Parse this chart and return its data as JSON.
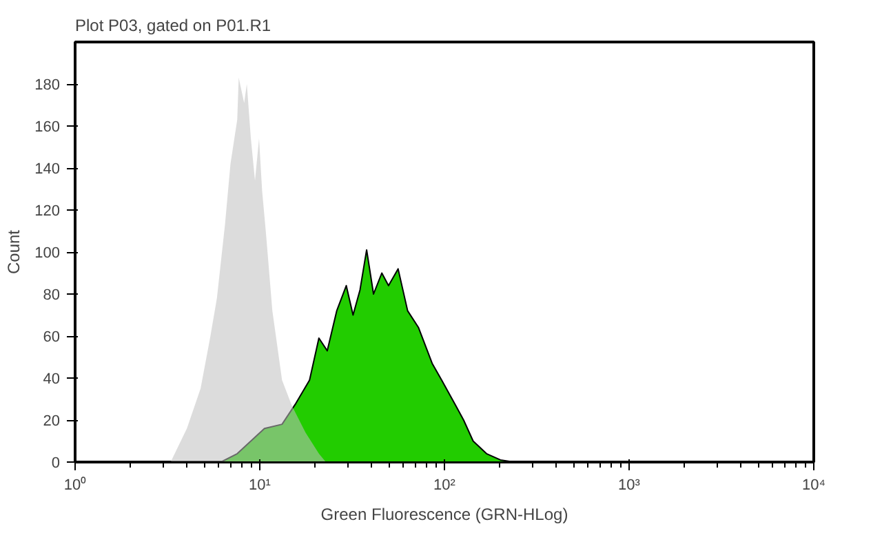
{
  "chart_data": {
    "type": "area",
    "title": "Plot P03, gated on P01.R1",
    "xlabel": "Green Fluorescence (GRN-HLog)",
    "ylabel": "Count",
    "log": "x",
    "grid": false,
    "xlim": [
      1,
      10000
    ],
    "xticks": [
      {
        "value": 1,
        "label": "10⁰"
      },
      {
        "value": 10,
        "label": "10¹"
      },
      {
        "value": 100,
        "label": "10²"
      },
      {
        "value": 1000,
        "label": "10³"
      },
      {
        "value": 10000,
        "label": "10⁴"
      }
    ],
    "ylim": [
      0,
      200
    ],
    "yticks": [
      0,
      20,
      40,
      60,
      80,
      100,
      120,
      140,
      160,
      180
    ],
    "series": [
      {
        "color": "#22cc00",
        "x": [
          6.16,
          7.55,
          10.6,
          13.2,
          15.7,
          18.6,
          20.9,
          23.2,
          26.1,
          29.4,
          32.0,
          34.9,
          37.9,
          41.3,
          45.8,
          49.8,
          56.1,
          63.2,
          72.4,
          85.8,
          96.6,
          115,
          127,
          143,
          169,
          201,
          238
        ],
        "values": [
          0,
          4,
          16,
          18,
          28,
          39,
          59,
          53,
          72,
          84,
          70,
          82,
          101,
          80,
          90,
          84,
          92,
          72,
          64,
          47,
          39,
          27,
          20,
          10,
          4,
          1,
          0
        ]
      },
      {
        "color": "#c0c0c0",
        "x": [
          3.29,
          4.03,
          4.78,
          5.38,
          5.86,
          6.48,
          6.94,
          7.55,
          7.69,
          8.23,
          8.51,
          8.95,
          9.42,
          9.91,
          10.3,
          10.8,
          11.7,
          13.2,
          14.9,
          17.7,
          20.9,
          22.8
        ],
        "values": [
          0,
          16,
          35,
          59,
          78,
          113,
          142,
          163,
          183,
          171,
          180,
          154,
          134,
          154,
          129,
          109,
          72,
          39,
          27,
          14,
          4,
          0
        ]
      }
    ]
  }
}
